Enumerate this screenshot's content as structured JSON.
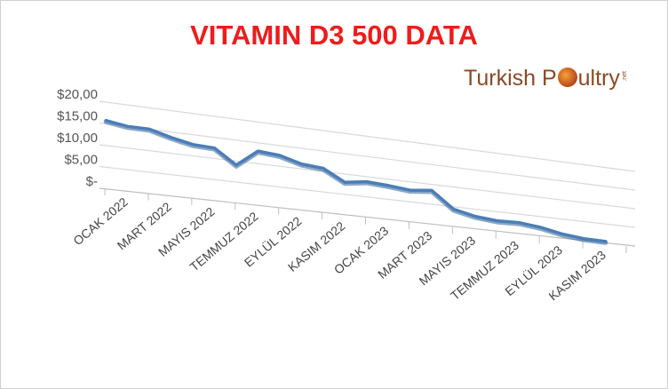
{
  "chart_data": {
    "type": "line",
    "title": "VITAMIN D3 500 DATA",
    "y_ticks": [
      "$20,00",
      "$15,00",
      "$10,00",
      "$5,00",
      "$-"
    ],
    "y_tick_values": [
      20,
      15,
      10,
      5,
      0
    ],
    "ylim": [
      0,
      20
    ],
    "x_tick_labels": [
      "OCAK 2022",
      "MART 2022",
      "MAYIS 2022",
      "TEMMUZ 2022",
      "EYLÜL 2022",
      "KASIM 2022",
      "OCAK 2023",
      "MART 2023",
      "MAYIS 2023",
      "TEMMUZ 2023",
      "EYLÜL 2023",
      "KASIM 2023"
    ],
    "values": [
      15.6,
      14.9,
      14.9,
      13.6,
      12.6,
      12.4,
      9.0,
      13.0,
      12.6,
      11.2,
      10.8,
      8.0,
      8.8,
      8.5,
      8.0,
      8.6,
      4.5,
      3.3,
      2.8,
      3.0,
      2.4,
      1.3,
      0.7,
      0.6
    ],
    "grid": true,
    "legend": "none",
    "line_color": "#4a7eb8"
  },
  "logo": {
    "text_before": "Turkish P",
    "text_after": "ultry",
    "suffix": ".net"
  }
}
